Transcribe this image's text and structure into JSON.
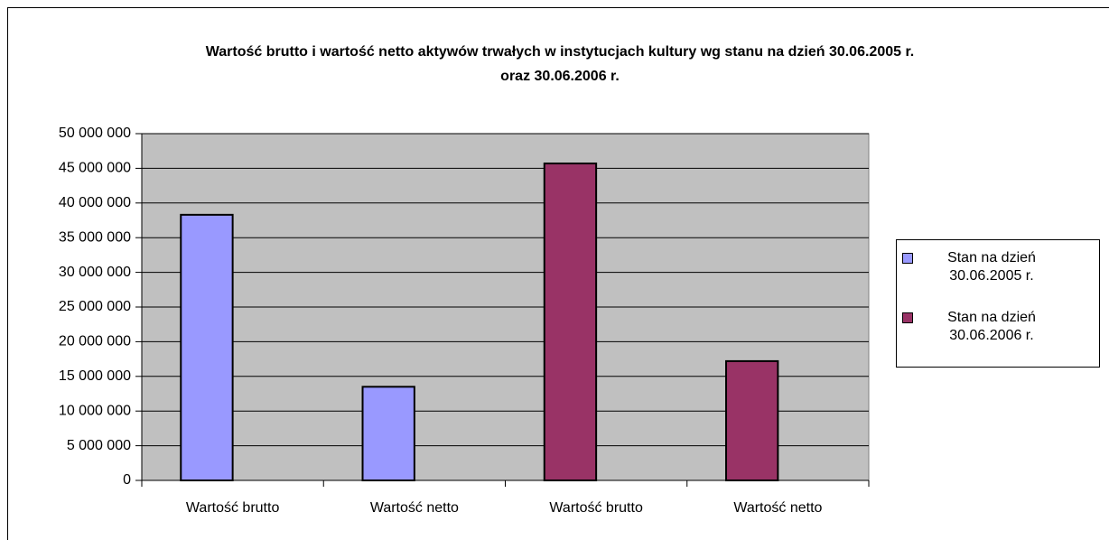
{
  "chart_data": {
    "type": "bar",
    "title": "Wartość brutto i wartość netto aktywów trwałych w instytucjach kultury wg stanu na dzień 30.06.2005 r. oraz 30.06.2006 r.",
    "categories": [
      "Wartość brutto",
      "Wartość netto",
      "Wartość brutto",
      "Wartość netto"
    ],
    "series": [
      {
        "name": "Stan na dzień 30.06.2005 r.",
        "color": "#9999ff",
        "values": [
          38300000,
          13500000,
          null,
          null
        ]
      },
      {
        "name": "Stan na dzień 30.06.2006 r.",
        "color": "#993366",
        "values": [
          null,
          null,
          45700000,
          17200000
        ]
      }
    ],
    "ylim": [
      0,
      50000000
    ],
    "yticks": [
      0,
      {
        "value": 5000000,
        "label": "5 000 000"
      },
      {
        "value": 10000000,
        "label": "10 000 000"
      },
      {
        "value": 15000000,
        "label": "15 000 000"
      },
      {
        "value": 20000000,
        "label": "20 000 000"
      },
      {
        "value": 25000000,
        "label": "25 000 000"
      },
      {
        "value": 30000000,
        "label": "30 000 000"
      },
      {
        "value": 35000000,
        "label": "35 000 000"
      },
      {
        "value": 40000000,
        "label": "40 000 000"
      },
      {
        "value": 45000000,
        "label": "45 000 000"
      },
      {
        "value": 50000000,
        "label": "50 000 000"
      }
    ],
    "grid": true,
    "legend": "right"
  }
}
